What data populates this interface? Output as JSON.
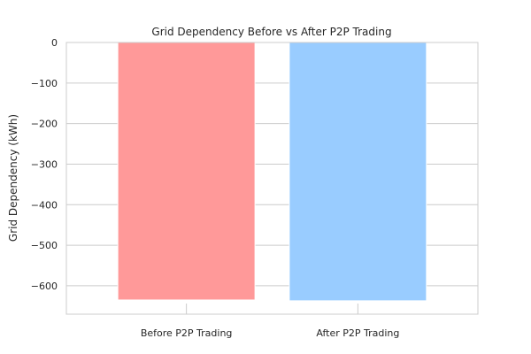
{
  "chart_data": {
    "type": "bar",
    "title": "Grid Dependency Before vs After P2P Trading",
    "xlabel": "",
    "ylabel": "Grid Dependency (kWh)",
    "categories": [
      "Before P2P Trading",
      "After P2P Trading"
    ],
    "values": [
      -635,
      -637
    ],
    "colors": [
      "#ff9999",
      "#99ccff"
    ],
    "ylim": [
      -670,
      0
    ],
    "yticks": [
      0,
      -100,
      -200,
      -300,
      -400,
      -500,
      -600
    ],
    "ytick_labels": [
      "0",
      "−100",
      "−200",
      "−300",
      "−400",
      "−500",
      "−600"
    ],
    "grid": true,
    "legend": "none"
  }
}
